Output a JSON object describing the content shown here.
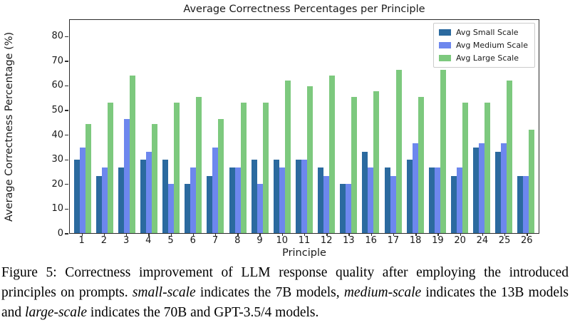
{
  "chart_data": {
    "type": "bar",
    "title": "Average Correctness Percentages per Principle",
    "xlabel": "Principle",
    "ylabel": "Average Correctness Percentage (%)",
    "categories": [
      "1",
      "2",
      "3",
      "4",
      "5",
      "6",
      "7",
      "8",
      "9",
      "10",
      "11",
      "12",
      "13",
      "16",
      "17",
      "18",
      "19",
      "20",
      "24",
      "25",
      "26"
    ],
    "series": [
      {
        "name": "Avg Small Scale",
        "color": "#2b6a9f",
        "values": [
          30,
          23.3,
          26.7,
          30,
          30,
          20,
          23.3,
          26.7,
          30,
          30,
          30,
          26.7,
          20,
          33.3,
          26.7,
          30,
          26.7,
          23.3,
          35,
          33.3,
          23.3
        ]
      },
      {
        "name": "Avg Medium Scale",
        "color": "#6d87ee",
        "values": [
          35,
          26.7,
          46.7,
          33.3,
          20,
          26.7,
          35,
          26.7,
          20,
          26.7,
          30,
          23.3,
          20,
          26.7,
          23.3,
          36.7,
          26.7,
          26.7,
          36.7,
          36.7,
          23.3
        ]
      },
      {
        "name": "Avg Large Scale",
        "color": "#7dc97e",
        "values": [
          44.4,
          53.3,
          64.4,
          44.4,
          53.3,
          55.6,
          46.7,
          53.3,
          53.3,
          62.2,
          60,
          64.4,
          55.6,
          57.8,
          66.7,
          55.6,
          66.7,
          53.3,
          53.3,
          62.2,
          42.2
        ]
      }
    ],
    "yticks": [
      0,
      10,
      20,
      30,
      40,
      50,
      60,
      70,
      80
    ],
    "ylim": [
      0,
      87
    ],
    "grid": false,
    "legend_position": "upper right"
  },
  "caption": {
    "segments": [
      {
        "text": "Figure 5: Correctness improvement of LLM response quality after employing the introduced principles on prompts. ",
        "italic": false
      },
      {
        "text": "small-scale",
        "italic": true
      },
      {
        "text": " indicates the 7B models, ",
        "italic": false
      },
      {
        "text": "medium-scale",
        "italic": true
      },
      {
        "text": " indicates the 13B models and ",
        "italic": false
      },
      {
        "text": "large-scale",
        "italic": true
      },
      {
        "text": " indicates the 70B and GPT-3.5/4 models.",
        "italic": false
      }
    ]
  }
}
